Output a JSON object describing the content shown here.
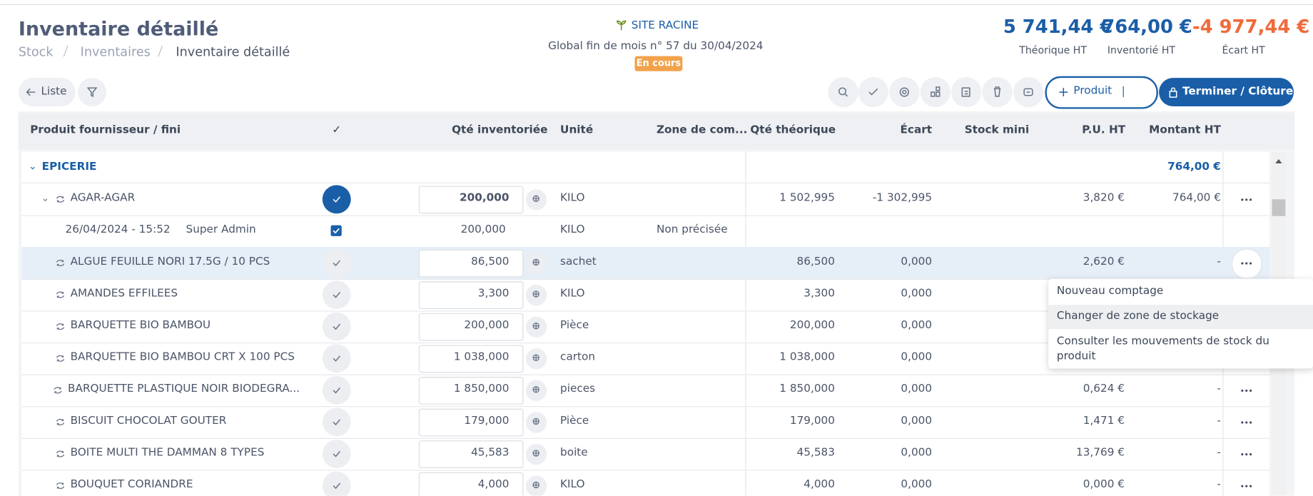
{
  "header": {
    "title": "Inventaire détaillé",
    "breadcrumb": [
      "Stock",
      "Inventaires",
      "Inventaire détaillé"
    ],
    "site": "SITE RACINE",
    "subtitle": "Global fin de mois n° 57 du 30/04/2024",
    "status": "En cours",
    "totals": [
      {
        "value": "5 741,44 €",
        "label": "Théorique HT"
      },
      {
        "value": "764,00 €",
        "label": "Inventorié HT"
      },
      {
        "value": "-4 977,44 €",
        "label": "Écart HT"
      }
    ]
  },
  "toolbar": {
    "back": "Liste",
    "add": "Produit",
    "finish": "Terminer / Clôturer"
  },
  "table": {
    "columns": [
      "Produit fournisseur / fini",
      "✓",
      "Qté inventoriée",
      "Unité",
      "Zone de com...",
      "Qté théorique",
      "Écart",
      "Stock mini",
      "P.U. HT",
      "Montant HT"
    ],
    "group": {
      "name": "EPICERIE",
      "total": "764,00 €"
    },
    "rows": [
      {
        "name": "AGAR-AGAR",
        "qty": "200,000",
        "unit": "KILO",
        "theoretical": "1 502,995",
        "gap": "-1 302,995",
        "pu": "3,820 €",
        "amount": "764,00 €",
        "done": true,
        "counts": [
          {
            "date": "26/04/2024 - 15:52",
            "user": "Super Admin",
            "qty": "200,000",
            "unit": "KILO",
            "zone": "Non précisée"
          }
        ]
      },
      {
        "name": "ALGUE FEUILLE NORI 17.5G / 10 PCS",
        "qty": "86,500",
        "unit": "sachet",
        "theoretical": "86,500",
        "gap": "0,000",
        "pu": "2,620 €",
        "amount": "-"
      },
      {
        "name": "AMANDES EFFILEES",
        "qty": "3,300",
        "unit": "KILO",
        "theoretical": "3,300",
        "gap": "0,000"
      },
      {
        "name": "BARQUETTE BIO BAMBOU",
        "qty": "200,000",
        "unit": "Pièce",
        "theoretical": "200,000",
        "gap": "0,000"
      },
      {
        "name": "BARQUETTE BIO BAMBOU CRT X 100 PCS",
        "qty": "1 038,000",
        "unit": "carton",
        "theoretical": "1 038,000",
        "gap": "0,000"
      },
      {
        "name": "BARQUETTE PLASTIQUE NOIR BIODEGRA...",
        "qty": "1 850,000",
        "unit": "pieces",
        "theoretical": "1 850,000",
        "gap": "0,000",
        "pu": "0,624 €",
        "amount": "-"
      },
      {
        "name": "BISCUIT CHOCOLAT GOUTER",
        "qty": "179,000",
        "unit": "Pièce",
        "theoretical": "179,000",
        "gap": "0,000",
        "pu": "1,471 €",
        "amount": "-"
      },
      {
        "name": "BOITE MULTI THE DAMMAN 8 TYPES",
        "qty": "45,583",
        "unit": "boite",
        "theoretical": "45,583",
        "gap": "0,000",
        "pu": "13,769 €",
        "amount": "-"
      },
      {
        "name": "BOUQUET CORIANDRE",
        "qty": "4,000",
        "unit": "KILO",
        "theoretical": "4,000",
        "gap": "0,000",
        "pu": "0,000 €",
        "amount": "-"
      }
    ]
  },
  "menu": [
    "Nouveau comptage",
    "Changer de zone de stockage",
    "Consulter les mouvements de stock du produit"
  ]
}
